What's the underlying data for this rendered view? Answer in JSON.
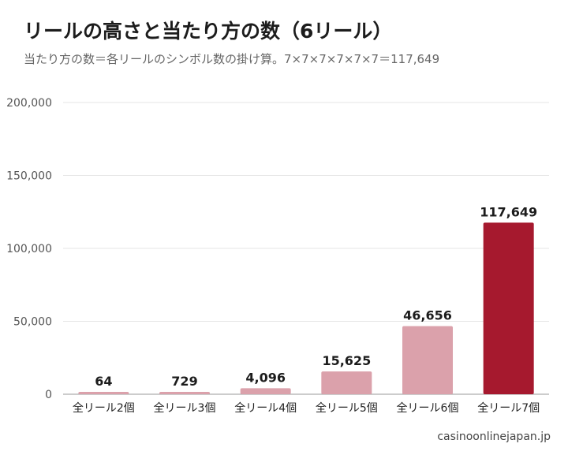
{
  "title": "リールの高さと当たり方の数（6リール）",
  "subtitle": "当たり方の数＝各リールのシンボル数の掛け算。7×7×7×7×7×7＝117,649",
  "source": "casinoonlinejapan.jp",
  "colors": {
    "bar": "#dba1ab",
    "highlight": "#a6192e",
    "grid": "#e6e6e6",
    "axis": "#999999"
  },
  "chart_data": {
    "type": "bar",
    "categories": [
      "全リール2個",
      "全リール3個",
      "全リール4個",
      "全リール5個",
      "全リール6個",
      "全リール7個"
    ],
    "values": [
      64,
      729,
      4096,
      15625,
      46656,
      117649
    ],
    "value_labels": [
      "64",
      "729",
      "4,096",
      "15,625",
      "46,656",
      "117,649"
    ],
    "highlight_index": 5,
    "ylim": [
      0,
      200000
    ],
    "yticks": [
      0,
      50000,
      100000,
      150000,
      200000
    ],
    "ytick_labels": [
      "0",
      "50,000",
      "100,000",
      "150,000",
      "200,000"
    ],
    "grid": true
  }
}
